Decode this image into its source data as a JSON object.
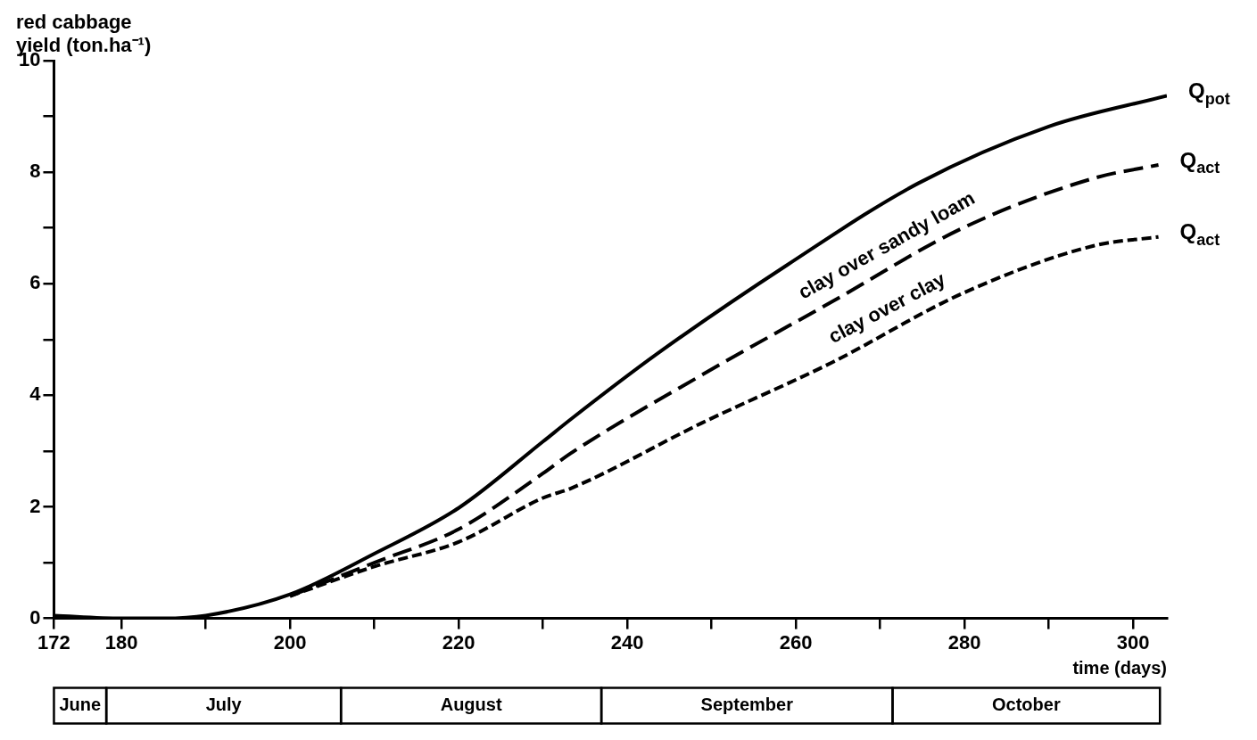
{
  "chart_data": {
    "type": "line",
    "ylabel": "red cabbage\nyield (ton.ha⁻¹)",
    "xlabel": "time (days)",
    "xlim": [
      172,
      304
    ],
    "xticks": [
      172,
      180,
      {
        "value": 190,
        "label": null
      },
      200,
      {
        "value": 210,
        "label": null
      },
      220,
      {
        "value": 230,
        "label": null
      },
      240,
      {
        "value": 250,
        "label": null
      },
      260,
      {
        "value": 270,
        "label": null
      },
      280,
      {
        "value": 290,
        "label": null
      },
      300
    ],
    "ylim": [
      0,
      10
    ],
    "yticks": [
      0,
      {
        "value": 1,
        "label": null
      },
      2,
      {
        "value": 3,
        "label": null
      },
      4,
      {
        "value": 5,
        "label": null
      },
      6,
      {
        "value": 7,
        "label": null
      },
      8,
      {
        "value": 9,
        "label": null
      },
      10
    ],
    "grid": false,
    "legend": false,
    "marker": "none",
    "series": [
      {
        "name": "Q$_{pot}$",
        "color": "#000000",
        "line_style": "solid",
        "x": [
          172,
          180,
          185,
          190,
          200,
          210,
          220,
          230,
          233.3,
          243.6,
          259,
          274.5,
          290,
          304
        ],
        "values": [
          0.05,
          0,
          0,
          0.05,
          0.43,
          1.16,
          1.98,
          3.17,
          3.57,
          4.75,
          6.34,
          7.8,
          8.82,
          9.37
        ]
      },
      {
        "name": "Q$_{act}$",
        "color": "#000000",
        "line_style": "dashed",
        "x": [
          200,
          210,
          220,
          230,
          233.3,
          248.8,
          264.3,
          279.8,
          295.3,
          303
        ],
        "values": [
          0.4,
          1.0,
          1.6,
          2.6,
          2.96,
          4.36,
          5.68,
          7.0,
          7.89,
          8.13
        ]
      },
      {
        "name": "Q$_{act}$",
        "color": "#000000",
        "line_style": "dashed",
        "x": [
          200,
          210,
          220,
          230,
          233.3,
          248.8,
          264.3,
          279.8,
          295.3,
          303
        ],
        "values": [
          0.4,
          0.93,
          1.37,
          2.16,
          2.33,
          3.5,
          4.59,
          5.83,
          6.68,
          6.84
        ]
      }
    ],
    "annotations": [
      "clay over sandy loam",
      "clay over clay",
      "June",
      "July",
      "August",
      "September",
      "October"
    ]
  }
}
